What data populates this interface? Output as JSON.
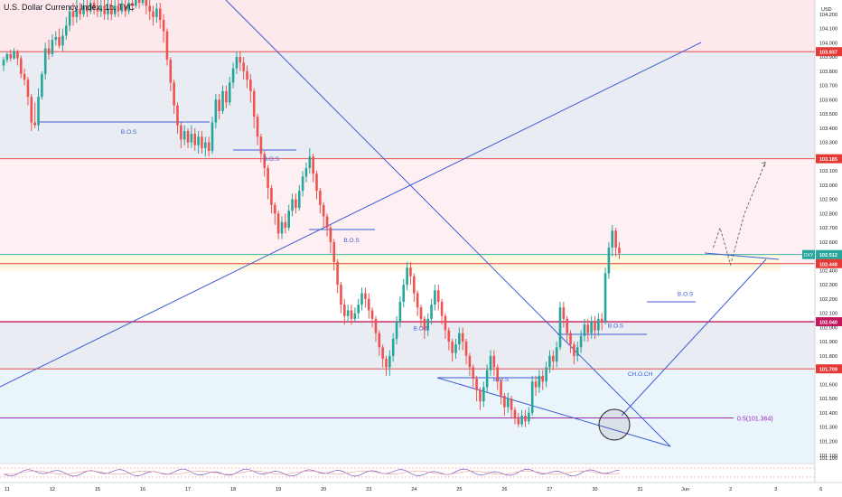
{
  "title": "U.S. Dollar Currency Index, 1h, TVC",
  "chart_data": {
    "type": "candlestick",
    "title": "U.S. Dollar Currency Index, 1h, TVC",
    "y_unit": "USD",
    "y_range": [
      101.05,
      104.3
    ],
    "y_ticks": [
      "104.200",
      "104.100",
      "104.000",
      "103.900",
      "103.800",
      "103.700",
      "103.600",
      "103.500",
      "103.400",
      "103.300",
      "103.200",
      "103.100",
      "103.000",
      "102.900",
      "102.800",
      "102.700",
      "102.600",
      "102.500",
      "102.400",
      "102.300",
      "102.200",
      "102.100",
      "102.000",
      "101.900",
      "101.800",
      "101.700",
      "101.600",
      "101.500",
      "101.400",
      "101.300",
      "101.200",
      "101.100"
    ],
    "x_ticks": [
      {
        "label": "11",
        "idx": 1
      },
      {
        "label": "12",
        "idx": 14
      },
      {
        "label": "15",
        "idx": 27
      },
      {
        "label": "16",
        "idx": 40
      },
      {
        "label": "17",
        "idx": 53
      },
      {
        "label": "18",
        "idx": 66
      },
      {
        "label": "19",
        "idx": 79
      },
      {
        "label": "20",
        "idx": 92
      },
      {
        "label": "23",
        "idx": 105
      },
      {
        "label": "24",
        "idx": 118
      },
      {
        "label": "25",
        "idx": 131
      },
      {
        "label": "26",
        "idx": 144
      },
      {
        "label": "27",
        "idx": 157
      },
      {
        "label": "30",
        "idx": 170
      },
      {
        "label": "31",
        "idx": 183
      },
      {
        "label": "Jun",
        "idx": 196
      },
      {
        "label": "2",
        "idx": 209
      },
      {
        "label": "3",
        "idx": 222
      },
      {
        "label": "6",
        "idx": 235
      }
    ],
    "price_levels": [
      {
        "value": 103.937,
        "label": "103.937",
        "color": "#e53935"
      },
      {
        "value": 103.185,
        "label": "103.185",
        "color": "#e53935"
      },
      {
        "value": 102.512,
        "label": "102.512",
        "color": "#26a69a",
        "sublabel": "57:45",
        "tag": "DXY"
      },
      {
        "value": 102.448,
        "label": "102.448",
        "color": "#e53935"
      },
      {
        "value": 102.04,
        "label": "102.040",
        "color": "#c2185b"
      },
      {
        "value": 101.709,
        "label": "101.709",
        "color": "#e53935"
      }
    ],
    "zones": [
      {
        "from": 104.3,
        "to": 103.937,
        "color": "#fde8ec"
      },
      {
        "from": 103.937,
        "to": 103.185,
        "color": "#e9edf3"
      },
      {
        "from": 103.185,
        "to": 102.448,
        "color": "#fdeff2"
      },
      {
        "from": 102.448,
        "to": 102.04,
        "color": "#ffffff"
      },
      {
        "from": 102.04,
        "to": 101.709,
        "color": "#e9edf3"
      },
      {
        "from": 101.709,
        "to": 101.05,
        "color": "#e9f4fb"
      }
    ],
    "bos_labels": [
      {
        "text": "B.O.S",
        "idx": 36,
        "value": 103.36
      },
      {
        "text": "B.O.S",
        "idx": 77,
        "value": 103.17
      },
      {
        "text": "B.O.S",
        "idx": 100,
        "value": 102.6
      },
      {
        "text": "B.O.S",
        "idx": 120,
        "value": 101.98
      },
      {
        "text": "B.O.S",
        "idx": 143,
        "value": 101.62
      },
      {
        "text": "B.O.S",
        "idx": 176,
        "value": 102.0
      },
      {
        "text": "B.O.S",
        "idx": 196,
        "value": 102.22
      },
      {
        "text": "CH.O.CH",
        "idx": 183,
        "value": 101.66
      }
    ],
    "fib_label": {
      "text": "0.5(101.364)",
      "value": 101.364
    },
    "candles": [
      [
        103.84,
        103.88,
        103.8,
        103.9
      ],
      [
        103.88,
        103.92,
        103.86,
        103.93
      ],
      [
        103.92,
        103.89,
        103.87,
        103.95
      ],
      [
        103.89,
        103.94,
        103.88,
        103.96
      ],
      [
        103.94,
        103.89,
        103.84,
        103.95
      ],
      [
        103.89,
        103.78,
        103.75,
        103.91
      ],
      [
        103.78,
        103.74,
        103.7,
        103.82
      ],
      [
        103.74,
        103.62,
        103.56,
        103.76
      ],
      [
        103.62,
        103.44,
        103.38,
        103.64
      ],
      [
        103.44,
        103.42,
        103.4,
        103.58
      ],
      [
        103.42,
        103.62,
        103.38,
        103.68
      ],
      [
        103.62,
        103.78,
        103.6,
        103.8
      ],
      [
        103.78,
        103.96,
        103.74,
        104.0
      ],
      [
        103.96,
        103.92,
        103.88,
        104.02
      ],
      [
        103.92,
        104.02,
        103.9,
        104.06
      ],
      [
        104.02,
        104.04,
        103.98,
        104.08
      ],
      [
        104.04,
        103.98,
        103.96,
        104.1
      ],
      [
        103.98,
        104.05,
        103.94,
        104.1
      ],
      [
        104.05,
        104.12,
        104.02,
        104.18
      ],
      [
        104.12,
        104.22,
        104.08,
        104.26
      ],
      [
        104.22,
        104.18,
        104.12,
        104.28
      ],
      [
        104.18,
        104.24,
        104.14,
        104.3
      ],
      [
        104.24,
        104.2,
        104.16,
        104.28
      ],
      [
        104.2,
        104.26,
        104.18,
        104.3
      ],
      [
        104.26,
        104.22,
        104.18,
        104.3
      ],
      [
        104.22,
        104.28,
        104.2,
        104.3
      ],
      [
        104.28,
        104.24,
        104.2,
        104.3
      ],
      [
        104.24,
        104.22,
        104.18,
        104.3
      ],
      [
        104.22,
        104.26,
        104.18,
        104.3
      ],
      [
        104.26,
        104.2,
        104.16,
        104.3
      ],
      [
        104.2,
        104.24,
        104.16,
        104.3
      ],
      [
        104.24,
        104.2,
        104.16,
        104.3
      ],
      [
        104.2,
        104.26,
        104.18,
        104.3
      ],
      [
        104.26,
        104.22,
        104.18,
        104.3
      ],
      [
        104.22,
        104.26,
        104.2,
        104.3
      ],
      [
        104.26,
        104.22,
        104.18,
        104.3
      ],
      [
        104.22,
        104.28,
        104.2,
        104.3
      ],
      [
        104.28,
        104.26,
        104.22,
        104.3
      ],
      [
        104.26,
        104.3,
        104.24,
        104.3
      ],
      [
        104.3,
        104.28,
        104.24,
        104.3
      ],
      [
        104.28,
        104.3,
        104.26,
        104.3
      ],
      [
        104.3,
        104.26,
        104.2,
        104.3
      ],
      [
        104.26,
        104.22,
        104.16,
        104.3
      ],
      [
        104.22,
        104.18,
        104.12,
        104.26
      ],
      [
        104.18,
        104.24,
        104.14,
        104.28
      ],
      [
        104.24,
        104.16,
        104.1,
        104.28
      ],
      [
        104.16,
        104.08,
        104.0,
        104.2
      ],
      [
        104.08,
        103.88,
        103.84,
        104.1
      ],
      [
        103.88,
        103.72,
        103.66,
        103.9
      ],
      [
        103.72,
        103.56,
        103.5,
        103.74
      ],
      [
        103.56,
        103.42,
        103.36,
        103.58
      ],
      [
        103.42,
        103.32,
        103.26,
        103.44
      ],
      [
        103.32,
        103.38,
        103.28,
        103.42
      ],
      [
        103.38,
        103.3,
        103.26,
        103.4
      ],
      [
        103.3,
        103.36,
        103.26,
        103.42
      ],
      [
        103.36,
        103.28,
        103.24,
        103.4
      ],
      [
        103.28,
        103.34,
        103.22,
        103.38
      ],
      [
        103.34,
        103.26,
        103.22,
        103.38
      ],
      [
        103.26,
        103.3,
        103.2,
        103.34
      ],
      [
        103.3,
        103.24,
        103.2,
        103.34
      ],
      [
        103.24,
        103.44,
        103.22,
        103.48
      ],
      [
        103.44,
        103.6,
        103.4,
        103.64
      ],
      [
        103.6,
        103.52,
        103.46,
        103.64
      ],
      [
        103.52,
        103.66,
        103.5,
        103.7
      ],
      [
        103.66,
        103.58,
        103.54,
        103.7
      ],
      [
        103.58,
        103.72,
        103.56,
        103.76
      ],
      [
        103.72,
        103.82,
        103.68,
        103.86
      ],
      [
        103.82,
        103.9,
        103.78,
        103.94
      ],
      [
        103.9,
        103.86,
        103.8,
        103.94
      ],
      [
        103.86,
        103.8,
        103.74,
        103.9
      ],
      [
        103.8,
        103.74,
        103.68,
        103.84
      ],
      [
        103.74,
        103.66,
        103.58,
        103.78
      ],
      [
        103.66,
        103.48,
        103.4,
        103.68
      ],
      [
        103.48,
        103.34,
        103.28,
        103.5
      ],
      [
        103.34,
        103.22,
        103.16,
        103.36
      ],
      [
        103.22,
        103.12,
        103.06,
        103.24
      ],
      [
        103.12,
        102.98,
        102.9,
        103.14
      ],
      [
        102.98,
        102.86,
        102.8,
        103.0
      ],
      [
        102.86,
        102.8,
        102.72,
        102.88
      ],
      [
        102.8,
        102.66,
        102.62,
        102.82
      ],
      [
        102.66,
        102.74,
        102.62,
        102.78
      ],
      [
        102.74,
        102.7,
        102.66,
        102.8
      ],
      [
        102.7,
        102.82,
        102.68,
        102.86
      ],
      [
        102.82,
        102.9,
        102.78,
        102.94
      ],
      [
        102.9,
        102.84,
        102.8,
        102.94
      ],
      [
        102.84,
        102.96,
        102.82,
        103.0
      ],
      [
        102.96,
        103.06,
        102.92,
        103.1
      ],
      [
        103.06,
        103.12,
        103.02,
        103.16
      ],
      [
        103.12,
        103.2,
        103.08,
        103.26
      ],
      [
        103.2,
        103.08,
        103.02,
        103.22
      ],
      [
        103.08,
        102.96,
        102.9,
        103.1
      ],
      [
        102.96,
        102.86,
        102.8,
        102.98
      ],
      [
        102.86,
        102.78,
        102.7,
        102.88
      ],
      [
        102.78,
        102.7,
        102.64,
        102.8
      ],
      [
        102.7,
        102.6,
        102.52,
        102.72
      ],
      [
        102.6,
        102.46,
        102.4,
        102.62
      ],
      [
        102.46,
        102.3,
        102.24,
        102.48
      ],
      [
        102.3,
        102.16,
        102.1,
        102.32
      ],
      [
        102.16,
        102.08,
        102.02,
        102.2
      ],
      [
        102.08,
        102.12,
        102.04,
        102.16
      ],
      [
        102.12,
        102.06,
        102.02,
        102.16
      ],
      [
        102.06,
        102.1,
        102.04,
        102.14
      ],
      [
        102.1,
        102.16,
        102.06,
        102.2
      ],
      [
        102.16,
        102.24,
        102.12,
        102.28
      ],
      [
        102.24,
        102.2,
        102.14,
        102.28
      ],
      [
        102.2,
        102.12,
        102.06,
        102.24
      ],
      [
        102.12,
        102.06,
        102.0,
        102.14
      ],
      [
        102.06,
        101.96,
        101.9,
        102.08
      ],
      [
        101.96,
        101.86,
        101.8,
        101.98
      ],
      [
        101.86,
        101.78,
        101.72,
        101.88
      ],
      [
        101.78,
        101.72,
        101.66,
        101.8
      ],
      [
        101.72,
        101.8,
        101.66,
        101.84
      ],
      [
        101.8,
        101.92,
        101.76,
        101.96
      ],
      [
        101.92,
        102.04,
        101.88,
        102.08
      ],
      [
        102.04,
        102.18,
        102.0,
        102.22
      ],
      [
        102.18,
        102.3,
        102.14,
        102.34
      ],
      [
        102.3,
        102.42,
        102.26,
        102.46
      ],
      [
        102.42,
        102.36,
        102.3,
        102.46
      ],
      [
        102.36,
        102.24,
        102.18,
        102.38
      ],
      [
        102.24,
        102.14,
        102.08,
        102.26
      ],
      [
        102.14,
        102.06,
        102.0,
        102.16
      ],
      [
        102.06,
        101.98,
        101.92,
        102.08
      ],
      [
        101.98,
        102.06,
        101.94,
        102.1
      ],
      [
        102.06,
        102.16,
        102.02,
        102.2
      ],
      [
        102.16,
        102.26,
        102.12,
        102.3
      ],
      [
        102.26,
        102.18,
        102.12,
        102.3
      ],
      [
        102.18,
        102.08,
        102.02,
        102.2
      ],
      [
        102.08,
        101.98,
        101.92,
        102.1
      ],
      [
        101.98,
        101.9,
        101.84,
        102.0
      ],
      [
        101.9,
        101.82,
        101.76,
        101.92
      ],
      [
        101.82,
        101.88,
        101.78,
        101.92
      ],
      [
        101.88,
        101.96,
        101.84,
        102.0
      ],
      [
        101.96,
        101.9,
        101.84,
        102.0
      ],
      [
        101.9,
        101.8,
        101.74,
        101.92
      ],
      [
        101.8,
        101.72,
        101.66,
        101.82
      ],
      [
        101.72,
        101.64,
        101.58,
        101.74
      ],
      [
        101.64,
        101.56,
        101.48,
        101.66
      ],
      [
        101.56,
        101.48,
        101.42,
        101.58
      ],
      [
        101.48,
        101.58,
        101.44,
        101.62
      ],
      [
        101.58,
        101.7,
        101.54,
        101.74
      ],
      [
        101.7,
        101.8,
        101.66,
        101.84
      ],
      [
        101.8,
        101.72,
        101.66,
        101.84
      ],
      [
        101.72,
        101.62,
        101.56,
        101.74
      ],
      [
        101.62,
        101.52,
        101.46,
        101.64
      ],
      [
        101.52,
        101.44,
        101.38,
        101.54
      ],
      [
        101.44,
        101.5,
        101.4,
        101.54
      ],
      [
        101.5,
        101.42,
        101.36,
        101.52
      ],
      [
        101.42,
        101.36,
        101.32,
        101.44
      ],
      [
        101.36,
        101.32,
        101.3,
        101.4
      ],
      [
        101.32,
        101.38,
        101.3,
        101.42
      ],
      [
        101.38,
        101.34,
        101.3,
        101.42
      ],
      [
        101.34,
        101.4,
        101.32,
        101.44
      ],
      [
        101.4,
        101.62,
        101.38,
        101.66
      ],
      [
        101.62,
        101.58,
        101.52,
        101.66
      ],
      [
        101.58,
        101.66,
        101.54,
        101.7
      ],
      [
        101.66,
        101.62,
        101.56,
        101.7
      ],
      [
        101.62,
        101.72,
        101.58,
        101.76
      ],
      [
        101.72,
        101.8,
        101.68,
        101.84
      ],
      [
        101.8,
        101.76,
        101.7,
        101.84
      ],
      [
        101.76,
        101.86,
        101.72,
        101.9
      ],
      [
        101.86,
        102.14,
        101.84,
        102.18
      ],
      [
        102.14,
        102.06,
        102.0,
        102.18
      ],
      [
        102.06,
        101.96,
        101.9,
        102.08
      ],
      [
        101.96,
        101.88,
        101.82,
        101.98
      ],
      [
        101.88,
        101.8,
        101.74,
        101.9
      ],
      [
        101.8,
        101.86,
        101.76,
        101.9
      ],
      [
        101.86,
        101.94,
        101.82,
        101.98
      ],
      [
        101.94,
        102.02,
        101.9,
        102.06
      ],
      [
        102.02,
        101.96,
        101.9,
        102.06
      ],
      [
        101.96,
        102.04,
        101.92,
        102.08
      ],
      [
        102.04,
        101.98,
        101.92,
        102.08
      ],
      [
        101.98,
        102.06,
        101.94,
        102.1
      ],
      [
        102.06,
        102.04,
        101.98,
        102.1
      ],
      [
        102.04,
        102.38,
        102.02,
        102.42
      ],
      [
        102.38,
        102.56,
        102.34,
        102.6
      ],
      [
        102.56,
        102.68,
        102.5,
        102.72
      ],
      [
        102.68,
        102.56,
        102.5,
        102.7
      ],
      [
        102.56,
        102.52,
        102.48,
        102.6
      ]
    ],
    "projection": [
      [
        204,
        102.56
      ],
      [
        206,
        102.7
      ],
      [
        209,
        102.44
      ],
      [
        213,
        102.8
      ],
      [
        219,
        103.16
      ]
    ]
  }
}
